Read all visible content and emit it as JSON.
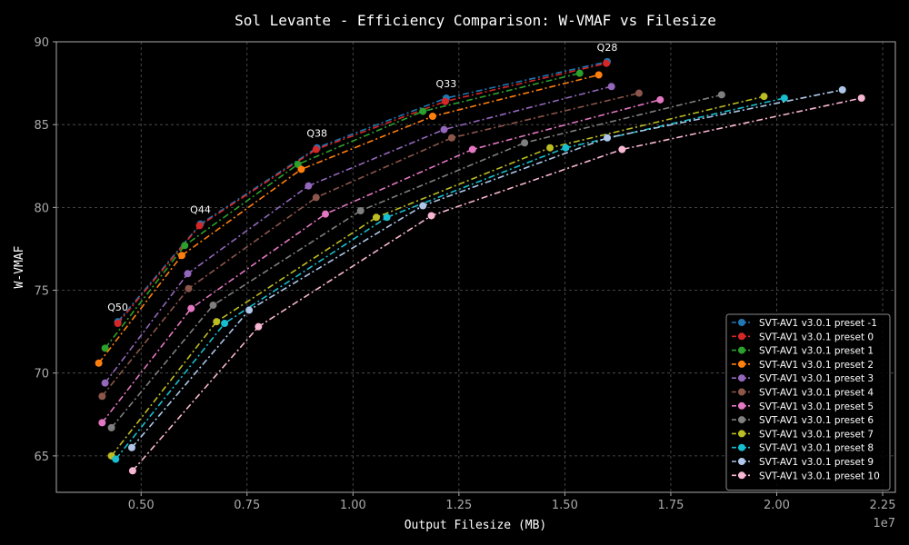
{
  "chart_data": {
    "type": "line",
    "title": "Sol Levante - Efficiency Comparison: W-VMAF vs Filesize",
    "xlabel": "Output Filesize (MB)",
    "ylabel": "W-VMAF",
    "x_offset_label": "1e7",
    "xlim": [
      3000000,
      22800000
    ],
    "ylim": [
      62.8,
      90
    ],
    "x_ticks": [
      {
        "value": 5000000,
        "label": "0.50"
      },
      {
        "value": 7500000,
        "label": "0.75"
      },
      {
        "value": 10000000,
        "label": "1.00"
      },
      {
        "value": 12500000,
        "label": "1.25"
      },
      {
        "value": 15000000,
        "label": "1.50"
      },
      {
        "value": 17500000,
        "label": "1.75"
      },
      {
        "value": 20000000,
        "label": "2.00"
      },
      {
        "value": 22500000,
        "label": "2.25"
      }
    ],
    "y_ticks": [
      65,
      70,
      75,
      80,
      85,
      90
    ],
    "grid": true,
    "legend_position": "bottom-right",
    "annotations": [
      {
        "text": "Q50",
        "x": 4450000,
        "y": 73.1
      },
      {
        "text": "Q44",
        "x": 6400000,
        "y": 79.0
      },
      {
        "text": "Q38",
        "x": 9150000,
        "y": 83.6
      },
      {
        "text": "Q33",
        "x": 12200000,
        "y": 86.6
      },
      {
        "text": "Q28",
        "x": 16000000,
        "y": 88.8
      }
    ],
    "series": [
      {
        "name": "SVT-AV1 v3.0.1 preset -1",
        "color": "#1f77b4",
        "x": [
          4450000,
          6400000,
          9150000,
          12200000,
          16000000
        ],
        "y": [
          73.1,
          79.0,
          83.6,
          86.6,
          88.8
        ]
      },
      {
        "name": "SVT-AV1 v3.0.1 preset 0",
        "color": "#d62728",
        "x": [
          4450000,
          6380000,
          9130000,
          12180000,
          15980000
        ],
        "y": [
          73.0,
          78.9,
          83.5,
          86.4,
          88.7
        ]
      },
      {
        "name": "SVT-AV1 v3.0.1 preset 1",
        "color": "#2ca02c",
        "x": [
          4150000,
          6030000,
          8700000,
          11650000,
          15350000
        ],
        "y": [
          71.5,
          77.7,
          82.6,
          85.8,
          88.1
        ]
      },
      {
        "name": "SVT-AV1 v3.0.1 preset 2",
        "color": "#ff7f0e",
        "x": [
          4000000,
          5960000,
          8780000,
          11880000,
          15800000
        ],
        "y": [
          70.6,
          77.1,
          82.3,
          85.5,
          88.0
        ]
      },
      {
        "name": "SVT-AV1 v3.0.1 preset 3",
        "color": "#9467bd",
        "x": [
          4150000,
          6100000,
          8950000,
          12150000,
          16100000
        ],
        "y": [
          69.4,
          76.0,
          81.3,
          84.7,
          87.3
        ]
      },
      {
        "name": "SVT-AV1 v3.0.1 preset 4",
        "color": "#8c564b",
        "x": [
          4080000,
          6120000,
          9130000,
          12330000,
          16750000
        ],
        "y": [
          68.6,
          75.1,
          80.6,
          84.2,
          86.9
        ]
      },
      {
        "name": "SVT-AV1 v3.0.1 preset 5",
        "color": "#e377c2",
        "x": [
          4080000,
          6180000,
          9350000,
          12820000,
          17250000
        ],
        "y": [
          67.0,
          73.9,
          79.6,
          83.5,
          86.5
        ]
      },
      {
        "name": "SVT-AV1 v3.0.1 preset 6",
        "color": "#7f7f7f",
        "x": [
          4300000,
          6700000,
          10180000,
          14050000,
          18700000
        ],
        "y": [
          66.7,
          74.1,
          79.8,
          83.9,
          86.8
        ]
      },
      {
        "name": "SVT-AV1 v3.0.1 preset 7",
        "color": "#bcbd22",
        "x": [
          4300000,
          6780000,
          10550000,
          14650000,
          19700000
        ],
        "y": [
          65.0,
          73.1,
          79.4,
          83.6,
          86.7
        ]
      },
      {
        "name": "SVT-AV1 v3.0.1 preset 8",
        "color": "#17becf",
        "x": [
          4400000,
          6970000,
          10800000,
          15020000,
          20180000
        ],
        "y": [
          64.8,
          73.0,
          79.4,
          83.6,
          86.6
        ]
      },
      {
        "name": "SVT-AV1 v3.0.1 preset 9",
        "color": "#aec7e8",
        "x": [
          4780000,
          7550000,
          11650000,
          16000000,
          21550000
        ],
        "y": [
          65.5,
          73.8,
          80.1,
          84.2,
          87.1
        ]
      },
      {
        "name": "SVT-AV1 v3.0.1 preset 10",
        "color": "#f7b6d2",
        "x": [
          4800000,
          7770000,
          11850000,
          16350000,
          22000000
        ],
        "y": [
          64.1,
          72.8,
          79.5,
          83.5,
          86.6
        ]
      }
    ]
  }
}
